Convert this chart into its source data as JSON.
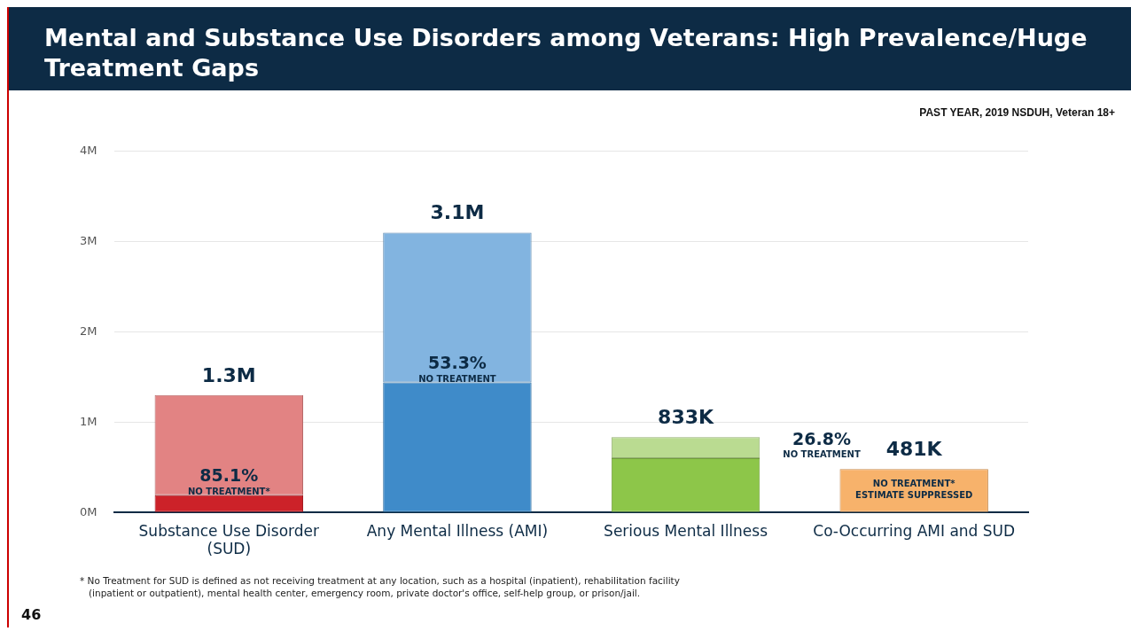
{
  "chart_data": {
    "type": "bar",
    "title": "Mental and Substance Use Disorders among Veterans: High Prevalence/Huge Treatment Gaps",
    "subtitle": "PAST YEAR, 2019 NSDUH, Veteran 18+",
    "categories": [
      "Substance Use Disorder (SUD)",
      "Any Mental Illness (AMI)",
      "Serious Mental Illness",
      "Co-Occurring AMI and SUD"
    ],
    "stacked": true,
    "series": [
      {
        "colors": [
          "#cc2229",
          "#3f8bc9",
          "#8dc649",
          "#f7b26b"
        ],
        "values": [
          0.19,
          1.44,
          0.6,
          0.481
        ]
      },
      {
        "colors": [
          "#e28383",
          "#82b4e0",
          "#badb91",
          null
        ],
        "values": [
          1.11,
          1.66,
          0.233,
          null
        ]
      }
    ],
    "totals": [
      "1.3M",
      "3.1M",
      "833K",
      "481K"
    ],
    "ylim": [
      0,
      4
    ],
    "yticks": [
      {
        "value": 0,
        "label": "0M"
      },
      {
        "value": 1,
        "label": "1M"
      },
      {
        "value": 2,
        "label": "2M"
      },
      {
        "value": 3,
        "label": "3M"
      },
      {
        "value": 4,
        "label": "4M"
      }
    ],
    "grid": "y",
    "legend": false,
    "annotations": [
      {
        "text": "85.1%\nNO TREATMENT*",
        "x": "Substance Use Disorder (SUD)",
        "y": 0.19
      },
      {
        "text": "53.3%\nNO TREATMENT",
        "x": "Any Mental Illness (AMI)",
        "y": 1.44
      },
      "26.8%\nNO TREATMENT",
      {
        "text": "NO TREATMENT*\nESTIMATE SUPPRESSED",
        "x": "Co-Occurring AMI and SUD",
        "y": 0.481
      },
      "* No Treatment for SUD is defined as not receiving treatment at any location, such as a hospital (inpatient), rehabilitation facility (inpatient or outpatient), mental health center, emergency room, private doctor's office, self-help group, or prison/jail.",
      "46"
    ]
  }
}
